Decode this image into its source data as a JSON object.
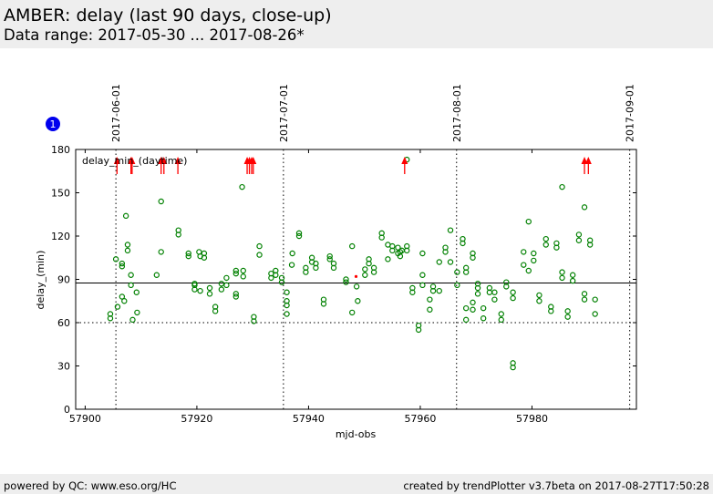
{
  "header": {
    "title": "AMBER: delay (last 90 days, close-up)",
    "subtitle": "Data range: 2017-05-30 ... 2017-08-26*"
  },
  "footer": {
    "left": "powered by QC: www.eso.org/HC",
    "right": "created by trendPlotter v3.7beta on 2017-08-27T17:50:28"
  },
  "badge": {
    "label": "1",
    "color": "#0000ee"
  },
  "chart_data": {
    "type": "scatter",
    "xlabel": "mjd-obs",
    "ylabel": "delay_(min)",
    "legend_label": "delay_min_(daytime)",
    "legend_position": "top-left",
    "xlim": [
      57898.3,
      57998.7
    ],
    "ylim": [
      0,
      180
    ],
    "x_ticks": [
      57900,
      57920,
      57940,
      57960,
      57980
    ],
    "y_ticks": [
      0,
      30,
      60,
      90,
      120,
      150,
      180
    ],
    "month_markers": [
      {
        "x": 57905.5,
        "label": "2017-06-01"
      },
      {
        "x": 57935.5,
        "label": "2017-07-01"
      },
      {
        "x": 57966.5,
        "label": "2017-08-01"
      },
      {
        "x": 57997.5,
        "label": "2017-09-01"
      }
    ],
    "reference_lines": {
      "solid": 87.5,
      "dotted": 60
    },
    "series_color": "#008000",
    "outlier_color": "#ff0000",
    "points": [
      [
        57904.5,
        63
      ],
      [
        57904.5,
        66
      ],
      [
        57905.5,
        104
      ],
      [
        57905.8,
        71
      ],
      [
        57906.6,
        78
      ],
      [
        57906.6,
        99
      ],
      [
        57906.6,
        101
      ],
      [
        57907,
        75
      ],
      [
        57907.3,
        134
      ],
      [
        57907.6,
        110
      ],
      [
        57907.6,
        114
      ],
      [
        57908.2,
        93
      ],
      [
        57908.2,
        86
      ],
      [
        57908.5,
        62
      ],
      [
        57909.2,
        81
      ],
      [
        57909.3,
        67
      ],
      [
        57912.8,
        93
      ],
      [
        57913.6,
        144
      ],
      [
        57913.6,
        109
      ],
      [
        57916.7,
        121
      ],
      [
        57916.7,
        124
      ],
      [
        57918.5,
        106
      ],
      [
        57918.5,
        108
      ],
      [
        57919.6,
        87
      ],
      [
        57919.6,
        86
      ],
      [
        57919.6,
        83
      ],
      [
        57920.4,
        109
      ],
      [
        57920.6,
        106
      ],
      [
        57920.6,
        82
      ],
      [
        57921.3,
        108
      ],
      [
        57921.3,
        105
      ],
      [
        57922.3,
        84
      ],
      [
        57922.3,
        80
      ],
      [
        57923.3,
        71
      ],
      [
        57923.3,
        68
      ],
      [
        57924.4,
        83
      ],
      [
        57924.4,
        87
      ],
      [
        57925.3,
        91
      ],
      [
        57925.3,
        86
      ],
      [
        57927,
        96
      ],
      [
        57927,
        94
      ],
      [
        57927,
        80
      ],
      [
        57927,
        78
      ],
      [
        57928.1,
        154
      ],
      [
        57928.3,
        96
      ],
      [
        57928.3,
        92
      ],
      [
        57930.2,
        64
      ],
      [
        57930.2,
        61
      ],
      [
        57931.2,
        113
      ],
      [
        57931.2,
        107
      ],
      [
        57933.3,
        91
      ],
      [
        57933.3,
        94
      ],
      [
        57934.1,
        96
      ],
      [
        57934.1,
        93
      ],
      [
        57935.2,
        91
      ],
      [
        57935.2,
        88
      ],
      [
        57936.1,
        81
      ],
      [
        57936.1,
        75
      ],
      [
        57936.1,
        72
      ],
      [
        57936.1,
        66
      ],
      [
        57937,
        100
      ],
      [
        57937.1,
        108
      ],
      [
        57938.3,
        120
      ],
      [
        57938.3,
        122
      ],
      [
        57939.5,
        98
      ],
      [
        57939.5,
        95
      ],
      [
        57940.6,
        105
      ],
      [
        57940.6,
        102
      ],
      [
        57941.3,
        101
      ],
      [
        57941.3,
        98
      ],
      [
        57942.7,
        76
      ],
      [
        57942.7,
        73
      ],
      [
        57943.8,
        106
      ],
      [
        57943.8,
        104
      ],
      [
        57944.5,
        101
      ],
      [
        57944.5,
        98
      ],
      [
        57946.7,
        90
      ],
      [
        57946.7,
        88
      ],
      [
        57947.8,
        113
      ],
      [
        57947.8,
        67
      ],
      [
        57948.6,
        85
      ],
      [
        57948.8,
        75
      ],
      [
        57950.1,
        93
      ],
      [
        57950.1,
        97
      ],
      [
        57950.8,
        104
      ],
      [
        57950.8,
        101
      ],
      [
        57951.7,
        98
      ],
      [
        57951.7,
        95
      ],
      [
        57953.1,
        122
      ],
      [
        57953.1,
        119
      ],
      [
        57954.2,
        114
      ],
      [
        57954.2,
        104
      ],
      [
        57955,
        113
      ],
      [
        57955,
        110
      ],
      [
        57956,
        112
      ],
      [
        57956,
        108
      ],
      [
        57956.4,
        109
      ],
      [
        57956.4,
        106
      ],
      [
        57956.7,
        110
      ],
      [
        57957.6,
        173
      ],
      [
        57957.6,
        113
      ],
      [
        57957.6,
        110
      ],
      [
        57958.6,
        84
      ],
      [
        57958.6,
        81
      ],
      [
        57959.7,
        58
      ],
      [
        57959.7,
        55
      ],
      [
        57960.4,
        93
      ],
      [
        57960.4,
        86
      ],
      [
        57960.4,
        108
      ],
      [
        57961.7,
        76
      ],
      [
        57961.7,
        69
      ],
      [
        57962.3,
        85
      ],
      [
        57962.3,
        82
      ],
      [
        57963.4,
        102
      ],
      [
        57963.4,
        82
      ],
      [
        57964.5,
        112
      ],
      [
        57964.5,
        109
      ],
      [
        57965.4,
        124
      ],
      [
        57965.4,
        102
      ],
      [
        57966.6,
        95
      ],
      [
        57966.6,
        86
      ],
      [
        57967.6,
        118
      ],
      [
        57967.6,
        115
      ],
      [
        57968.2,
        98
      ],
      [
        57968.2,
        95
      ],
      [
        57968.2,
        70
      ],
      [
        57968.2,
        62
      ],
      [
        57969.4,
        108
      ],
      [
        57969.4,
        105
      ],
      [
        57969.4,
        74
      ],
      [
        57969.4,
        69
      ],
      [
        57970.3,
        87
      ],
      [
        57970.3,
        84
      ],
      [
        57970.3,
        80
      ],
      [
        57971.3,
        70
      ],
      [
        57971.3,
        63
      ],
      [
        57972.4,
        84
      ],
      [
        57972.4,
        81
      ],
      [
        57973.3,
        81
      ],
      [
        57973.3,
        76
      ],
      [
        57974.5,
        66
      ],
      [
        57974.5,
        62
      ],
      [
        57975.4,
        88
      ],
      [
        57975.4,
        85
      ],
      [
        57976.6,
        81
      ],
      [
        57976.6,
        77
      ],
      [
        57976.6,
        32
      ],
      [
        57976.6,
        29
      ],
      [
        57978.5,
        109
      ],
      [
        57978.5,
        100
      ],
      [
        57979.4,
        130
      ],
      [
        57979.4,
        96
      ],
      [
        57980.3,
        108
      ],
      [
        57980.3,
        103
      ],
      [
        57981.3,
        79
      ],
      [
        57981.3,
        75
      ],
      [
        57982.5,
        118
      ],
      [
        57982.5,
        114
      ],
      [
        57983.4,
        71
      ],
      [
        57983.4,
        68
      ],
      [
        57984.4,
        115
      ],
      [
        57984.4,
        112
      ],
      [
        57985.4,
        154
      ],
      [
        57985.4,
        95
      ],
      [
        57985.4,
        91
      ],
      [
        57986.4,
        68
      ],
      [
        57986.4,
        64
      ],
      [
        57987.3,
        93
      ],
      [
        57987.3,
        89
      ],
      [
        57988.4,
        121
      ],
      [
        57988.4,
        117
      ],
      [
        57989.4,
        140
      ],
      [
        57989.4,
        80
      ],
      [
        57989.4,
        76
      ],
      [
        57990.4,
        117
      ],
      [
        57990.4,
        114
      ],
      [
        57991.3,
        76
      ],
      [
        57991.3,
        66
      ]
    ],
    "red_points": [
      [
        57948.5,
        92
      ]
    ],
    "arrows_top": [
      57905.7,
      57908.2,
      57908.4,
      57913.6,
      57914.1,
      57916.6,
      57929,
      57929.4,
      57929.8,
      57930.1,
      57957.2,
      57989.4,
      57990.1
    ]
  }
}
